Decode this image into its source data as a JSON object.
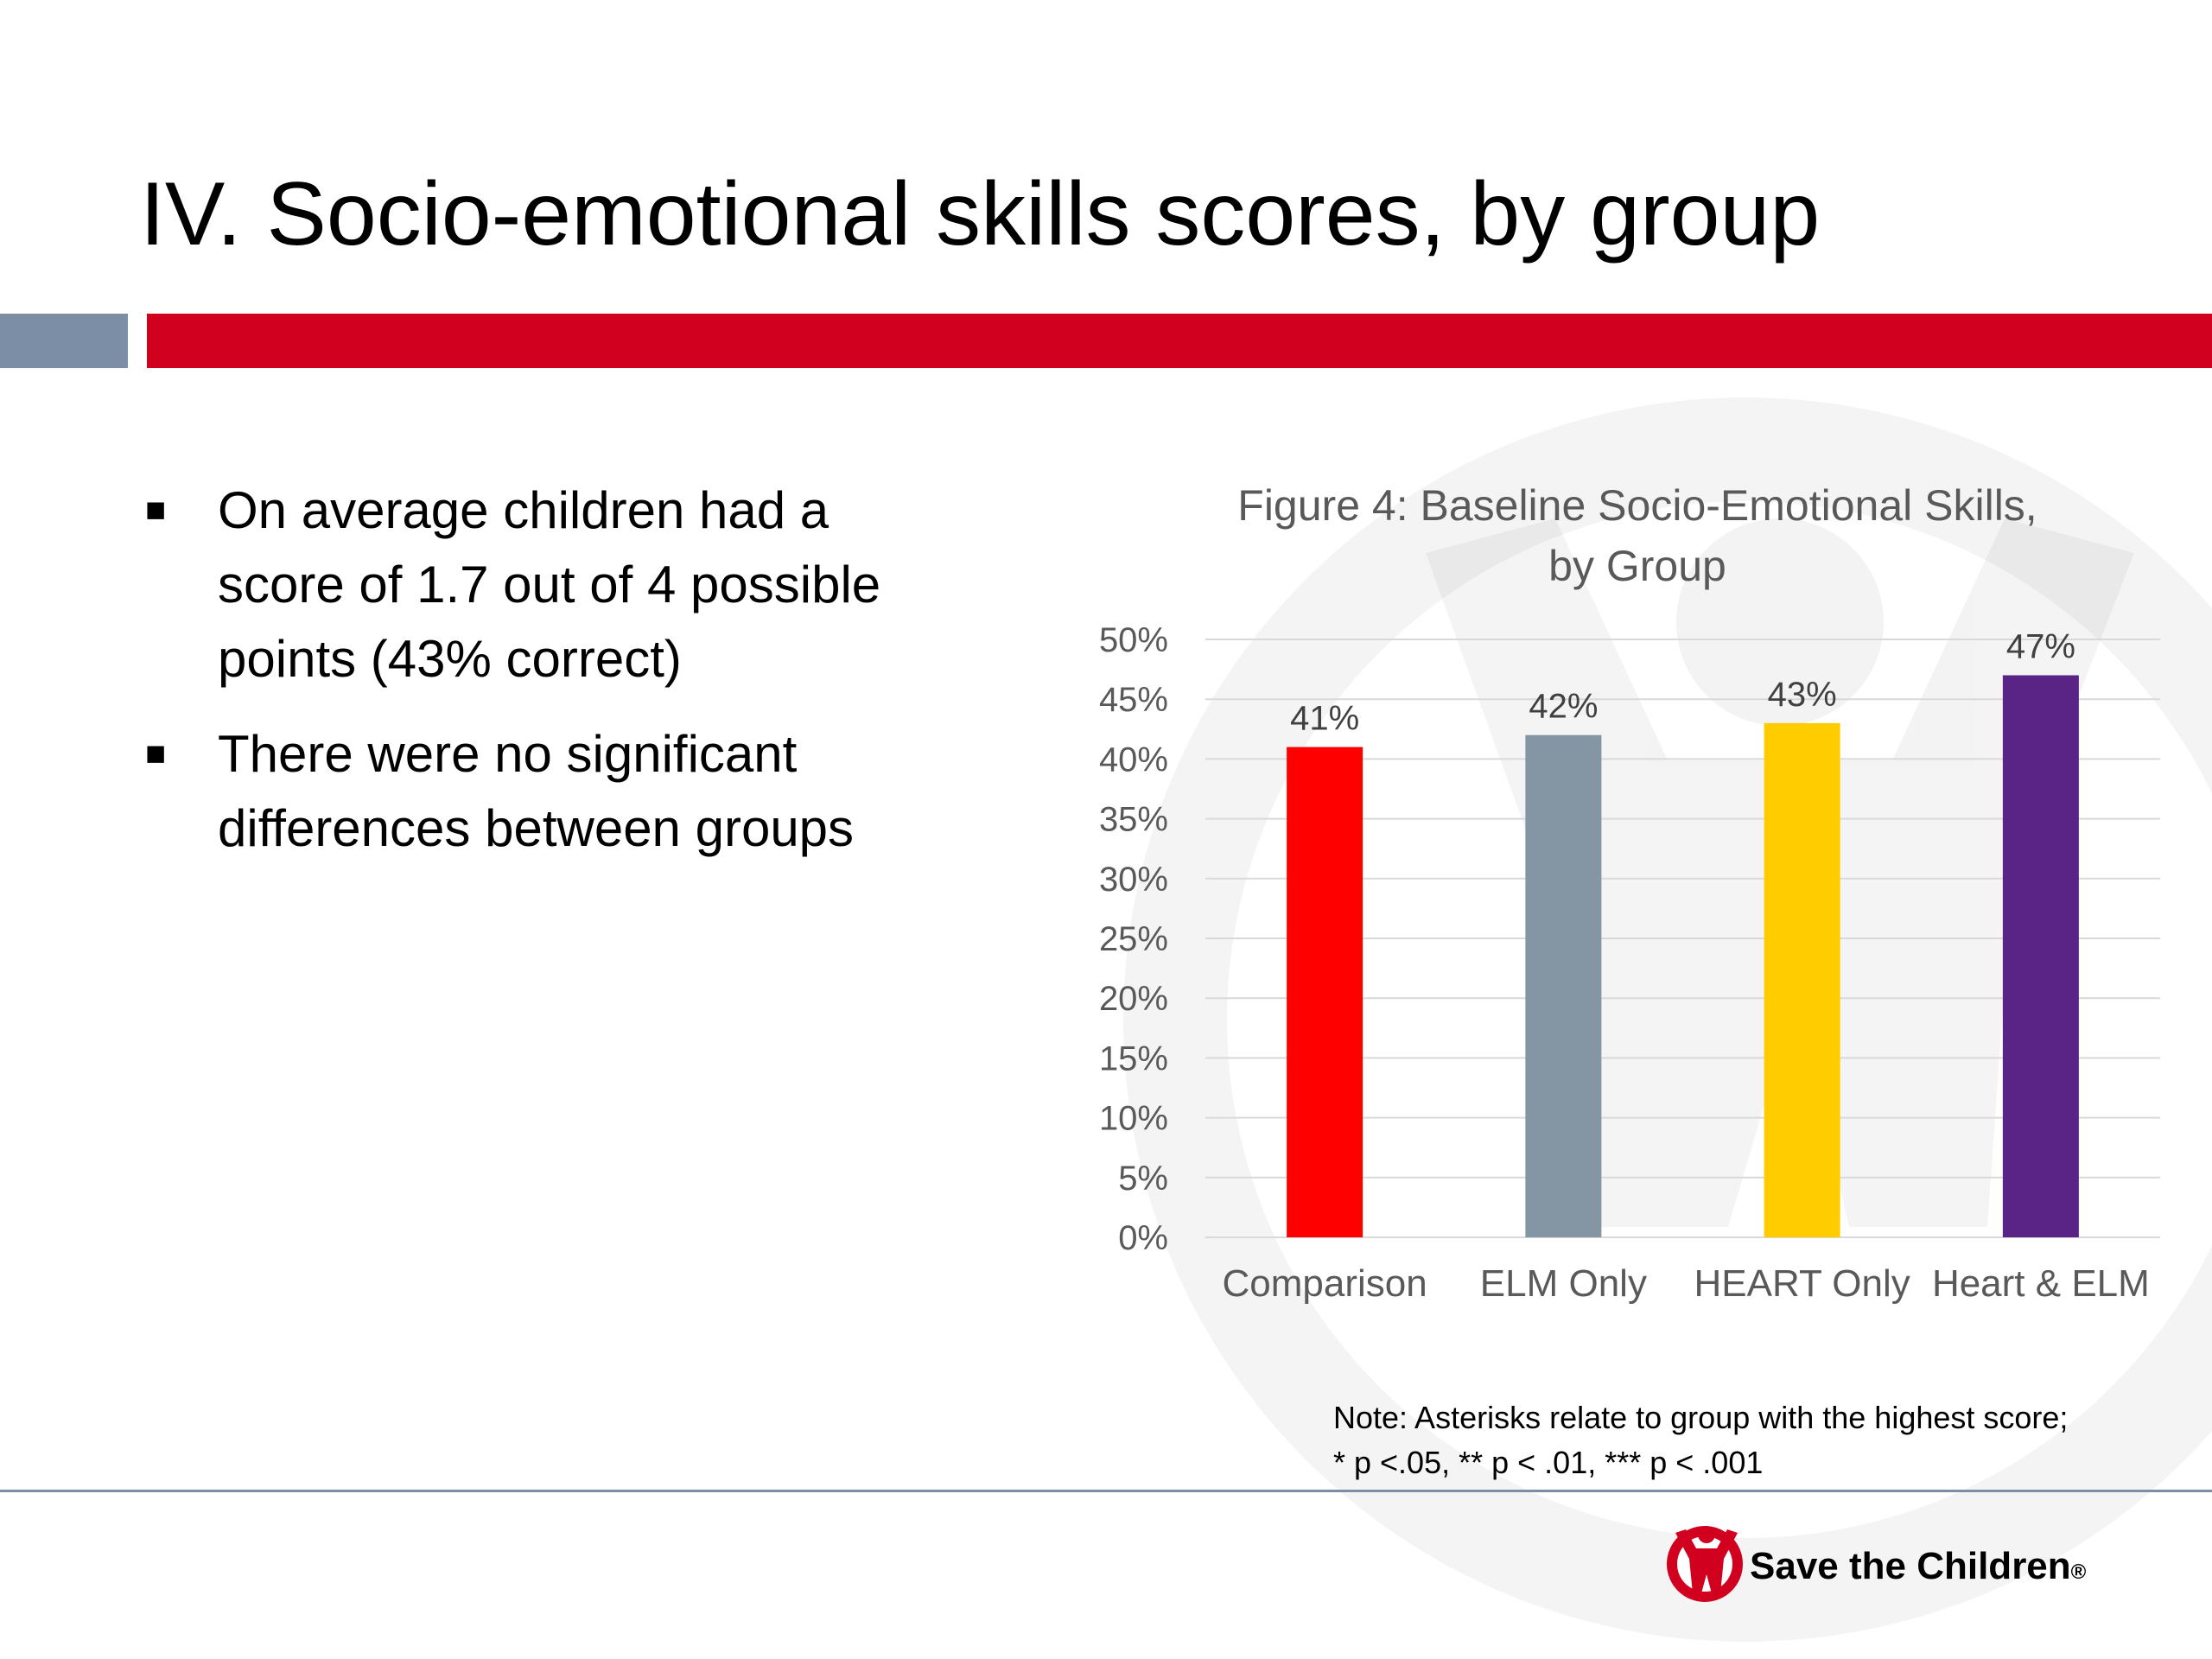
{
  "slide": {
    "title": "IV. Socio-emotional skills scores, by group",
    "bullets": [
      {
        "line1": "On average children had a",
        "line2": "score of 1.7 out of 4 possible",
        "line3": "points (43% correct)"
      },
      {
        "line1": "There were no significant",
        "line2": "differences between groups",
        "line3": ""
      }
    ],
    "note_line1": "Note:  Asterisks relate to group with the highest score;",
    "note_line2": " * p <.05, ** p < .01, *** p < .001",
    "brand_name": "Save the Children",
    "brand_mark": "®"
  },
  "colors": {
    "band_gray": "#7c8ea6",
    "band_red": "#d2001f",
    "logo_red": "#d2001f"
  },
  "chart_data": {
    "type": "bar",
    "title_line1": "Figure 4: Baseline Socio-Emotional Skills,",
    "title_line2": "by Group",
    "categories": [
      "Comparison",
      "ELM Only",
      "HEART Only",
      "Heart & ELM"
    ],
    "values": [
      41,
      42,
      43,
      47
    ],
    "value_labels": [
      "41%",
      "42%",
      "43%",
      "47%"
    ],
    "bar_colors": [
      "#ff0000",
      "#8496a3",
      "#ffcc00",
      "#5a2487"
    ],
    "ylim": [
      0,
      50
    ],
    "yticks": [
      0,
      5,
      10,
      15,
      20,
      25,
      30,
      35,
      40,
      45,
      50
    ],
    "ytick_suffix": "%",
    "grid": true
  }
}
